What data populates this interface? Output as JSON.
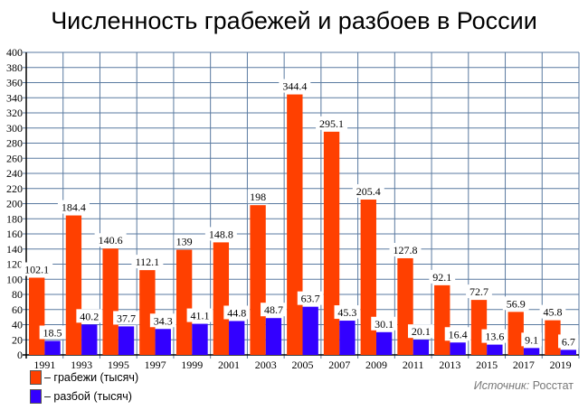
{
  "chart_data": {
    "type": "bar",
    "title": "Численность грабежей и разбоев в России",
    "categories": [
      "1991",
      "1993",
      "1995",
      "1997",
      "1999",
      "2001",
      "2003",
      "2005",
      "2007",
      "2009",
      "2011",
      "2013",
      "2015",
      "2017",
      "2019"
    ],
    "series": [
      {
        "name": "– грабежи (тысяч)",
        "color": "#ff4000",
        "values": [
          102.1,
          184.4,
          140.6,
          112.1,
          139,
          148.8,
          198,
          344.4,
          295.1,
          205.4,
          127.8,
          92.1,
          72.7,
          56.9,
          45.8
        ]
      },
      {
        "name": "– разбой (тысяч)",
        "color": "#3300ff",
        "values": [
          18.5,
          40.2,
          37.7,
          34.3,
          41.1,
          44.8,
          48.7,
          63.7,
          45.3,
          30.1,
          20.1,
          16.4,
          13.6,
          9.1,
          6.7
        ]
      }
    ],
    "ylim": [
      0,
      400
    ],
    "ytick_step": 20,
    "grid": true,
    "legend_position": "bottom-left",
    "source_label": "Источник:",
    "source_value": "Росстат"
  }
}
